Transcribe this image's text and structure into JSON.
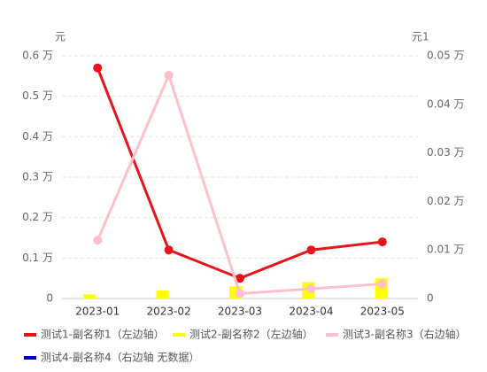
{
  "chart_data": {
    "type": "line",
    "ylabel": "元",
    "y2label": "元1",
    "categories": [
      "2023-01",
      "2023-02",
      "2023-03",
      "2023-04",
      "2023-05"
    ],
    "series": [
      {
        "name": "测试1-副名称1（左边轴）",
        "type": "line",
        "axis": "y",
        "color": "#e8141a",
        "values": [
          0.57,
          0.12,
          0.05,
          0.12,
          0.14
        ]
      },
      {
        "name": "测试2-副名称2（左边轴）",
        "type": "bar",
        "axis": "y",
        "color": "#ffff00",
        "values": [
          0.01,
          0.02,
          0.03,
          0.04,
          0.05
        ]
      },
      {
        "name": "测试3-副名称3（右边轴）",
        "type": "line",
        "axis": "y2",
        "color": "#ffc0cb",
        "values": [
          0.012,
          0.046,
          0.001,
          0.002,
          0.003
        ]
      },
      {
        "name": "测试4-副名称4（右边轴 无数据）",
        "type": "line",
        "axis": "y2",
        "color": "#0000cc",
        "values": [
          null,
          null,
          null,
          null,
          null
        ]
      }
    ],
    "ylim": [
      0,
      0.6
    ],
    "yticks": [
      0,
      {
        "value": 0.1,
        "label": "0.1 万"
      },
      {
        "value": 0.2,
        "label": "0.2 万"
      },
      {
        "value": 0.3,
        "label": "0.3 万"
      },
      {
        "value": 0.4,
        "label": "0.4 万"
      },
      {
        "value": 0.5,
        "label": "0.5 万"
      },
      {
        "value": 0.6,
        "label": "0.6 万"
      }
    ],
    "y2lim": [
      0,
      0.05
    ],
    "y2ticks": [
      0,
      {
        "value": 0.01,
        "label": "0.01 万"
      },
      {
        "value": 0.02,
        "label": "0.02 万"
      },
      {
        "value": 0.03,
        "label": "0.03 万"
      },
      {
        "value": 0.04,
        "label": "0.04 万"
      },
      {
        "value": 0.05,
        "label": "0.05 万"
      }
    ],
    "grid": true
  }
}
